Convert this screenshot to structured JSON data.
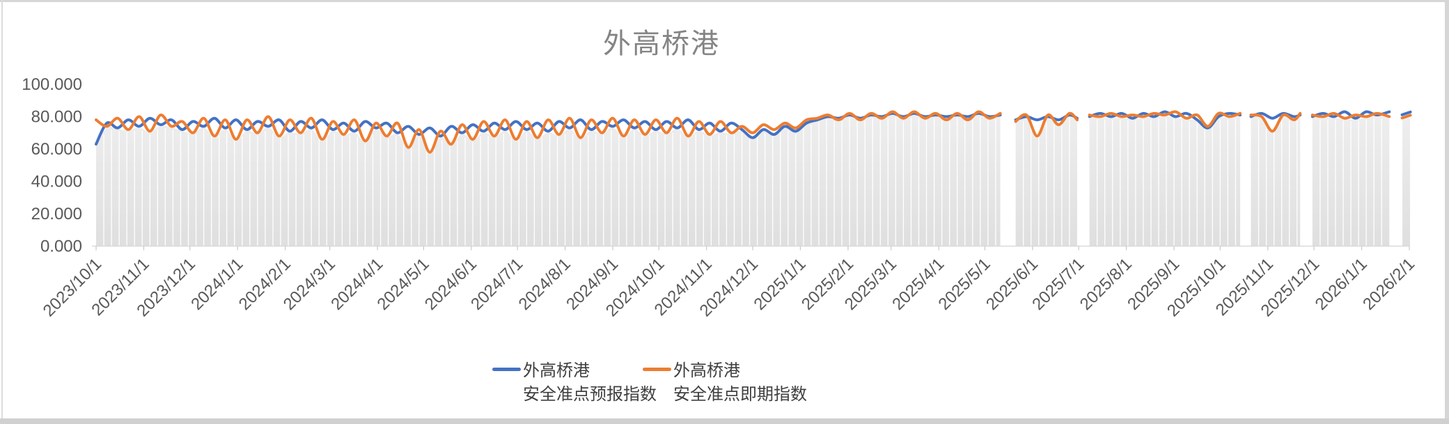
{
  "title": {
    "text": "外高桥港",
    "color": "#848484"
  },
  "legend": {
    "position": "bottom",
    "items": [
      {
        "name": "外高桥港",
        "desc": "安全准点预报指数",
        "color": "#4472C4"
      },
      {
        "name": "外高桥港",
        "desc": "安全准点即期指数",
        "color": "#ED7D31"
      }
    ]
  },
  "chart_data": {
    "type": "line",
    "title": "外高桥港",
    "xlabel": "",
    "ylabel": "",
    "ylim": [
      0,
      100
    ],
    "y_tick_labels": [
      "100.000",
      "80.000",
      "60.000",
      "40.000",
      "20.000",
      "0.000"
    ],
    "x_tick_labels": [
      "2023/10/1",
      "2023/11/1",
      "2023/12/1",
      "2024/1/1",
      "2024/2/1",
      "2024/3/1",
      "2024/4/1",
      "2024/5/1",
      "2024/6/1",
      "2024/7/1",
      "2024/8/1",
      "2024/9/1",
      "2024/10/1",
      "2024/11/1",
      "2024/12/1",
      "2025/1/1",
      "2025/2/1",
      "2025/3/1",
      "2025/4/1",
      "2025/5/1",
      "2025/6/1",
      "2025/7/1",
      "2025/8/1",
      "2025/9/1",
      "2025/10/1",
      "2025/11/1",
      "2025/12/1",
      "2026/1/1",
      "2026/2/1"
    ],
    "x_tick_day_offsets": [
      0,
      31,
      61,
      92,
      123,
      152,
      183,
      213,
      244,
      274,
      305,
      336,
      366,
      397,
      427,
      458,
      489,
      517,
      548,
      578,
      609,
      639,
      670,
      701,
      731,
      762,
      792,
      823,
      854
    ],
    "total_days": 854,
    "grid": "vertical-white-stripes-every-5-days",
    "legend_position": "bottom",
    "area_fill": {
      "color_top": "#eeeeee",
      "color_bottom": "#dfdfdf",
      "stripe_color": "#ffffff"
    },
    "axis_color": "#d9d9d9",
    "tick_label_color": "#595959",
    "segment_days": [
      [
        0,
        7,
        14,
        21,
        28,
        35,
        42,
        49,
        56,
        63,
        70,
        77,
        84,
        91,
        98,
        105,
        112,
        119,
        126,
        133,
        140,
        147,
        154,
        161,
        168,
        175,
        182,
        189,
        196,
        203,
        210,
        217,
        224,
        231,
        238,
        245,
        252,
        259,
        266,
        273,
        280,
        287,
        294,
        301,
        308,
        315,
        322,
        329,
        336,
        343,
        350,
        357,
        364,
        371,
        378,
        385,
        392,
        399,
        406,
        413,
        420,
        427,
        434,
        441,
        448,
        455,
        462,
        469,
        476,
        483,
        490,
        497,
        504,
        511,
        518,
        525,
        532,
        539,
        546,
        553,
        560,
        567,
        574,
        581,
        588
      ],
      [
        598,
        605,
        612,
        619,
        626,
        633,
        638
      ],
      [
        646,
        653,
        660,
        667,
        674,
        681,
        688,
        695,
        702,
        709,
        716,
        723,
        730,
        737,
        744
      ],
      [
        751,
        758,
        765,
        772,
        779,
        783
      ],
      [
        791,
        798,
        805,
        812,
        819,
        826,
        833,
        841
      ],
      [
        852
      ]
    ],
    "series": [
      {
        "name": "外高桥港安全准点预报指数",
        "color": "#4472C4",
        "segment_values": [
          [
            63,
            76,
            73,
            78,
            74,
            79,
            75,
            78,
            72,
            77,
            74,
            79,
            73,
            78,
            72,
            77,
            74,
            78,
            71,
            77,
            73,
            78,
            72,
            76,
            71,
            77,
            73,
            76,
            70,
            74,
            69,
            73,
            68,
            74,
            70,
            75,
            71,
            76,
            72,
            77,
            72,
            76,
            71,
            77,
            73,
            78,
            72,
            77,
            74,
            78,
            73,
            77,
            72,
            77,
            73,
            78,
            72,
            76,
            71,
            76,
            72,
            67,
            72,
            69,
            74,
            71,
            76,
            78,
            80,
            79,
            81,
            79,
            81,
            80,
            82,
            80,
            82,
            80,
            81,
            80,
            81,
            80,
            82,
            80,
            81
          ],
          [
            78,
            80,
            78,
            80,
            78,
            81,
            79
          ],
          [
            80,
            82,
            80,
            82,
            79,
            82,
            80,
            83,
            80,
            82,
            78,
            73,
            80,
            82,
            81
          ],
          [
            80,
            82,
            79,
            82,
            80,
            81
          ],
          [
            80,
            82,
            80,
            83,
            79,
            83,
            81,
            83
          ],
          [
            82
          ]
        ]
      },
      {
        "name": "外高桥港安全准点即期指数",
        "color": "#ED7D31",
        "segment_values": [
          [
            78,
            74,
            79,
            72,
            80,
            71,
            81,
            74,
            77,
            70,
            79,
            68,
            78,
            66,
            78,
            70,
            80,
            68,
            78,
            70,
            79,
            66,
            77,
            69,
            78,
            65,
            76,
            68,
            76,
            61,
            72,
            58,
            71,
            63,
            75,
            66,
            77,
            68,
            78,
            66,
            77,
            67,
            78,
            69,
            79,
            67,
            78,
            70,
            79,
            68,
            78,
            69,
            78,
            70,
            79,
            68,
            77,
            69,
            77,
            70,
            74,
            70,
            75,
            72,
            76,
            73,
            78,
            79,
            81,
            78,
            82,
            78,
            82,
            79,
            83,
            79,
            83,
            79,
            82,
            78,
            82,
            78,
            83,
            79,
            82
          ],
          [
            77,
            81,
            68,
            81,
            75,
            82,
            78
          ],
          [
            81,
            80,
            82,
            80,
            81,
            80,
            82,
            81,
            83,
            79,
            81,
            74,
            82,
            80,
            82
          ],
          [
            81,
            80,
            71,
            81,
            78,
            82
          ],
          [
            81,
            80,
            82,
            79,
            81,
            80,
            82,
            80
          ],
          [
            80
          ]
        ]
      }
    ]
  }
}
